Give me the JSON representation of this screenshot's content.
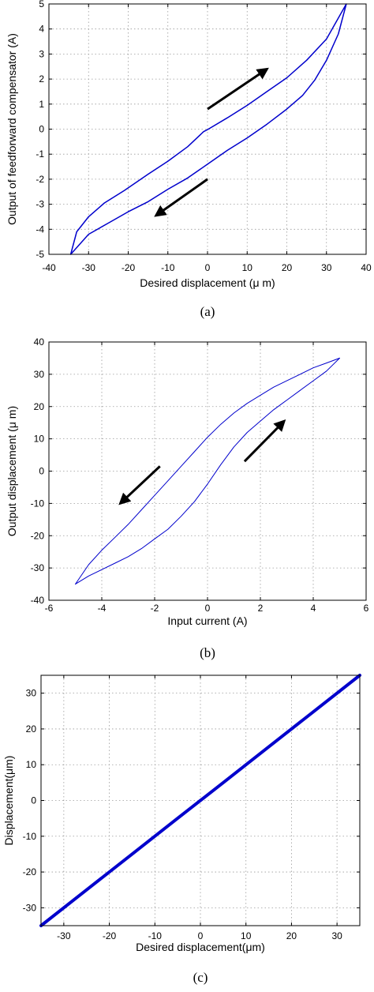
{
  "chart_data": [
    {
      "panel": "a",
      "type": "line",
      "caption": "(a)",
      "xlabel": "Desired displacement (μ m)",
      "ylabel": "Output of feedforward compensator (A)",
      "xlim": [
        -40,
        40
      ],
      "ylim": [
        -5,
        5
      ],
      "xticks": [
        -40,
        -30,
        -20,
        -10,
        0,
        10,
        20,
        30,
        40
      ],
      "yticks": [
        -5,
        -4,
        -3,
        -2,
        -1,
        0,
        1,
        2,
        3,
        4,
        5
      ],
      "grid": true,
      "line_color": "#0000cc",
      "series": [
        {
          "x": [
            -34.5,
            -33,
            -30,
            -26,
            -21,
            -15,
            -10,
            -5,
            -1,
            0,
            5,
            10,
            15,
            20,
            25,
            30,
            35,
            33,
            30,
            27,
            24,
            20,
            15,
            10,
            5,
            0,
            -5,
            -10,
            -15,
            -20,
            -25,
            -30,
            -34.5
          ],
          "y": [
            -5,
            -4.1,
            -3.5,
            -2.95,
            -2.45,
            -1.8,
            -1.28,
            -0.7,
            -0.1,
            -0.02,
            0.45,
            0.95,
            1.5,
            2.05,
            2.75,
            3.6,
            5,
            3.8,
            2.75,
            1.95,
            1.35,
            0.8,
            0.2,
            -0.35,
            -0.85,
            -1.4,
            -1.95,
            -2.4,
            -2.9,
            -3.3,
            -3.75,
            -4.2,
            -5
          ]
        }
      ],
      "arrows": [
        {
          "from": [
            0,
            0.8
          ],
          "to": [
            15,
            2.4
          ]
        },
        {
          "from": [
            0,
            -2.0
          ],
          "to": [
            -13,
            -3.45
          ]
        }
      ]
    },
    {
      "panel": "b",
      "type": "line",
      "caption": "(b)",
      "xlabel": "Input current (A)",
      "ylabel": "Output displacement (μ m)",
      "xlim": [
        -6,
        6
      ],
      "ylim": [
        -40,
        40
      ],
      "xticks": [
        -6,
        -4,
        -2,
        0,
        2,
        4,
        6
      ],
      "yticks": [
        -40,
        -30,
        -20,
        -10,
        0,
        10,
        20,
        30,
        40
      ],
      "grid": true,
      "line_color": "#0000cc",
      "series": [
        {
          "x": [
            -5,
            -4.5,
            -4,
            -3.5,
            -3,
            -2.5,
            -2,
            -1.5,
            -1,
            -0.5,
            0,
            0.5,
            1,
            1.5,
            2,
            2.5,
            3,
            3.5,
            4,
            4.5,
            5,
            4.5,
            4,
            3.5,
            3,
            2.5,
            2,
            1.5,
            1,
            0.5,
            0,
            -0.5,
            -1,
            -1.5,
            -2,
            -2.5,
            -3,
            -3.5,
            -4,
            -4.5,
            -5
          ],
          "y": [
            -35,
            -32.5,
            -30.5,
            -28.5,
            -26.5,
            -24,
            -21,
            -18,
            -14,
            -9.5,
            -4,
            2,
            7.5,
            12,
            15.5,
            19,
            22,
            25,
            28,
            31,
            35,
            33.5,
            32,
            30,
            28,
            26,
            23.5,
            21,
            18,
            14.5,
            10.5,
            6,
            1.5,
            -3,
            -7.5,
            -12,
            -16.5,
            -20.5,
            -24.5,
            -29,
            -35
          ]
        }
      ],
      "arrows": [
        {
          "from": [
            1.4,
            3
          ],
          "to": [
            2.9,
            15.5
          ]
        },
        {
          "from": [
            -1.8,
            1.5
          ],
          "to": [
            -3.3,
            -10
          ]
        }
      ]
    },
    {
      "panel": "c",
      "type": "line",
      "caption": "(c)",
      "xlabel": "Desired displacement(μm)",
      "ylabel": "Displacement(μm)",
      "xlim": [
        -35,
        35
      ],
      "ylim": [
        -35,
        35
      ],
      "xticks": [
        -30,
        -20,
        -10,
        0,
        10,
        20,
        30
      ],
      "yticks": [
        -30,
        -20,
        -10,
        0,
        10,
        20,
        30
      ],
      "grid": true,
      "line_color": "#0000cc",
      "series": [
        {
          "x": [
            -35,
            -25,
            -15,
            -5,
            0,
            5,
            15,
            25,
            35
          ],
          "y": [
            -35,
            -25,
            -15,
            -5,
            0,
            5,
            15,
            25,
            35
          ]
        }
      ]
    }
  ]
}
